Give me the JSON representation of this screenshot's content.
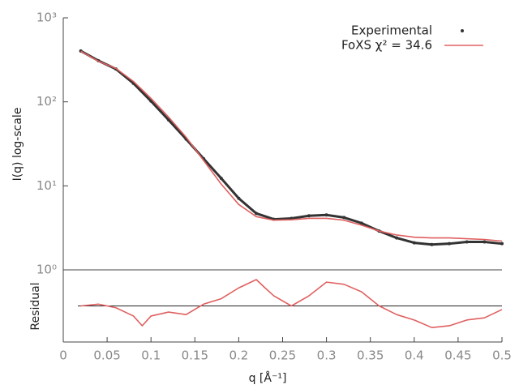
{
  "chart_data": [
    {
      "type": "line",
      "ylabel": "I(q) log-scale",
      "log_y": true,
      "xlim": [
        0,
        0.5
      ],
      "ylim": [
        1,
        1000
      ],
      "yticks": [
        {
          "value": 1,
          "label": "10⁰"
        },
        {
          "value": 10,
          "label": "10¹"
        },
        {
          "value": 100,
          "label": "10²"
        },
        {
          "value": 1000,
          "label": "10³"
        }
      ],
      "legend": "upper right",
      "x": [
        0.02,
        0.04,
        0.06,
        0.08,
        0.1,
        0.12,
        0.14,
        0.16,
        0.18,
        0.2,
        0.22,
        0.24,
        0.26,
        0.28,
        0.3,
        0.32,
        0.34,
        0.36,
        0.38,
        0.4,
        0.42,
        0.44,
        0.46,
        0.48,
        0.5
      ],
      "series": [
        {
          "name": "Experimental",
          "color": "#333333",
          "marker": true,
          "values": [
            403,
            309,
            246,
            166,
            102,
            61,
            36,
            21,
            12.3,
            7.1,
            4.7,
            4.0,
            4.1,
            4.4,
            4.5,
            4.2,
            3.6,
            2.9,
            2.4,
            2.1,
            2.0,
            2.05,
            2.15,
            2.15,
            2.05
          ]
        },
        {
          "name": "FoXS χ² = 34.6",
          "color": "#e06060",
          "marker": false,
          "values": [
            400,
            305,
            250,
            175,
            110,
            66,
            38,
            20,
            10.5,
            6.0,
            4.3,
            3.9,
            3.95,
            4.1,
            4.1,
            3.9,
            3.4,
            2.9,
            2.6,
            2.45,
            2.4,
            2.4,
            2.35,
            2.3,
            2.2
          ]
        }
      ]
    },
    {
      "type": "line",
      "ylabel": "Residual",
      "xlabel": "q [Å⁻¹]",
      "xlim": [
        0,
        0.5
      ],
      "xticks": [
        0,
        0.05,
        0.1,
        0.15,
        0.2,
        0.25,
        0.3,
        0.35,
        0.4,
        0.45,
        0.5
      ],
      "ylim": [
        -1,
        1
      ],
      "hline": 0,
      "x": [
        0.02,
        0.04,
        0.06,
        0.08,
        0.09,
        0.1,
        0.12,
        0.14,
        0.16,
        0.18,
        0.2,
        0.22,
        0.23,
        0.24,
        0.26,
        0.28,
        0.3,
        0.32,
        0.34,
        0.36,
        0.38,
        0.4,
        0.42,
        0.44,
        0.46,
        0.48,
        0.5
      ],
      "series": [
        {
          "color": "#e06060",
          "values": [
            0,
            0.05,
            -0.05,
            -0.28,
            -0.55,
            -0.28,
            -0.17,
            -0.24,
            0.05,
            0.2,
            0.5,
            0.73,
            0.5,
            0.28,
            0,
            0.28,
            0.66,
            0.6,
            0.39,
            0,
            -0.24,
            -0.39,
            -0.6,
            -0.55,
            -0.39,
            -0.33,
            -0.1
          ]
        }
      ]
    }
  ]
}
